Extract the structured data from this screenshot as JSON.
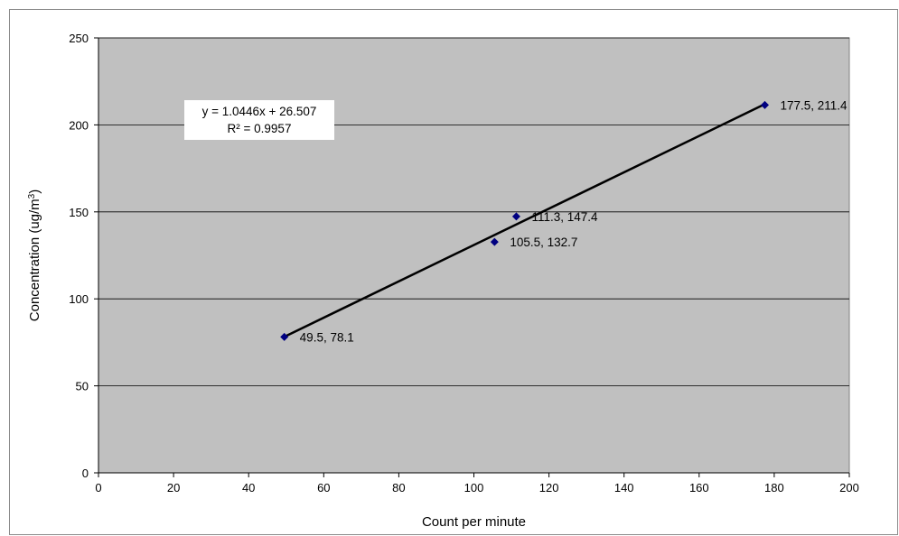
{
  "chart_data": {
    "type": "scatter",
    "title": "",
    "xlabel": "Count per minute",
    "ylabel": "Concentration (ug/m",
    "ylabel_sup": "3",
    "ylabel_close": ")",
    "xlim": [
      0,
      200
    ],
    "ylim": [
      0,
      250
    ],
    "xticks": [
      0,
      20,
      40,
      60,
      80,
      100,
      120,
      140,
      160,
      180,
      200
    ],
    "yticks": [
      0,
      50,
      100,
      150,
      200,
      250
    ],
    "grid": "horizontal",
    "legend": "none",
    "colors": {
      "plot_background": "#c0c0c0",
      "marker": "#000080",
      "trendline": "#000000",
      "gridline": "#000000"
    },
    "series": [
      {
        "points": [
          {
            "x": 49.5,
            "y": 78.1,
            "label": "49.5, 78.1"
          },
          {
            "x": 105.5,
            "y": 132.7,
            "label": "105.5, 132.7"
          },
          {
            "x": 111.3,
            "y": 147.4,
            "label": "111.3, 147.4"
          },
          {
            "x": 177.5,
            "y": 211.4,
            "label": "177.5, 211.4"
          }
        ]
      }
    ],
    "trendline": {
      "slope": 1.0446,
      "intercept": 26.507,
      "x_range": [
        49.5,
        177.5
      ],
      "equation": "y = 1.0446x + 26.507",
      "r_squared": "R² = 0.9957"
    }
  }
}
